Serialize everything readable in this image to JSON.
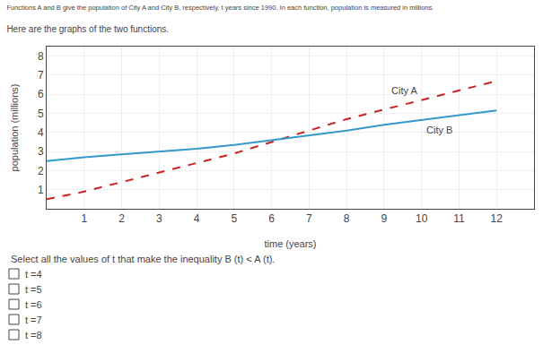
{
  "chart_data": {
    "type": "line",
    "title": "Functions A and B give the population of City A and City B, respectively, t years since 1990. In each function, population is measured in millions.",
    "subtitle": "Here are the graphs of the two functions.",
    "xlabel": "time (years)",
    "ylabel": "population (millions)",
    "x": [
      0,
      1,
      2,
      3,
      4,
      5,
      6,
      7,
      8,
      9,
      10,
      11,
      12
    ],
    "series": [
      {
        "name": "City A",
        "color": "#cc2222",
        "line_style": "dashed",
        "values": [
          0.5,
          0.9,
          1.4,
          1.9,
          2.4,
          2.9,
          3.5,
          4.1,
          4.7,
          5.2,
          5.7,
          6.2,
          6.7
        ]
      },
      {
        "name": "City B",
        "color": "#3399cc",
        "line_style": "solid",
        "values": [
          2.5,
          2.7,
          2.85,
          3.0,
          3.15,
          3.35,
          3.6,
          3.85,
          4.1,
          4.4,
          4.65,
          4.9,
          5.15
        ]
      }
    ],
    "xlim": [
      0,
      13
    ],
    "ylim": [
      0,
      8.5
    ],
    "xticks": [
      1,
      2,
      3,
      4,
      5,
      6,
      7,
      8,
      9,
      10,
      11,
      12
    ],
    "yticks": [
      1,
      2,
      3,
      4,
      5,
      6,
      7,
      8
    ],
    "grid": true,
    "annotations": [
      "Select all the values of t that make the inequality B (t) < A (t).",
      "t =4",
      "t =5",
      "t =6",
      "t =7",
      "t =8"
    ]
  }
}
